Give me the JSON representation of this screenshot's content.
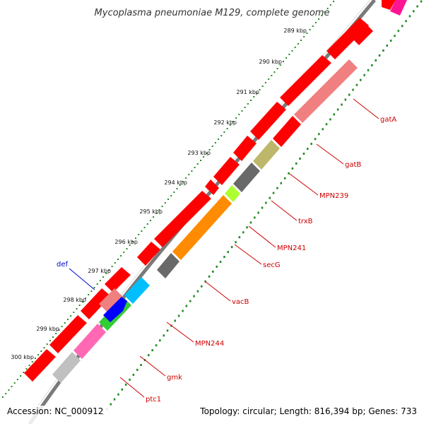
{
  "title": "Mycoplasma pneumoniae M129, complete genome",
  "footer": {
    "accession": "Accession: NC_000912",
    "summary": "Topology: circular; Length: 816,394 bp; Genes: 733"
  },
  "ruler": {
    "labels": [
      "289 kbp",
      "290 kbp",
      "291 kbp",
      "292 kbp",
      "293 kbp",
      "294 kbp",
      "295 kbp",
      "296 kbp",
      "297 kbp",
      "298 kbp",
      "299 kbp",
      "300 kbp"
    ]
  },
  "genes": [
    {
      "name": "gatA",
      "color": "#cc0000"
    },
    {
      "name": "gatB",
      "color": "#cc0000"
    },
    {
      "name": "MPN239",
      "color": "#cc0000"
    },
    {
      "name": "trxB",
      "color": "#cc0000"
    },
    {
      "name": "MPN241",
      "color": "#cc0000"
    },
    {
      "name": "secG",
      "color": "#cc0000"
    },
    {
      "name": "vacB",
      "color": "#cc0000"
    },
    {
      "name": "MPN244",
      "color": "#cc0000"
    },
    {
      "name": "gmk",
      "color": "#cc0000"
    },
    {
      "name": "ptc1",
      "color": "#cc0000"
    },
    {
      "name": "def",
      "color": "#0000cc"
    }
  ],
  "colors": {
    "backbone": "#7a7a7a",
    "cds": "#ff0000",
    "gatB_cog": "#f08080",
    "trxB_cog": "#bdb76b",
    "mpn241_cog": "#696969",
    "secG_cog": "#adff2f",
    "vacB_cog": "#ff8c00",
    "mpn244_cog": "#696969",
    "gmk_cog": "#00bfff",
    "ptc1_cog": "#32cd32",
    "def_cog": "#f08080",
    "def_cds": "#0000ff",
    "ruler_dots": "#228b22",
    "label_red": "#cc0000",
    "label_blue": "#0000cc"
  }
}
